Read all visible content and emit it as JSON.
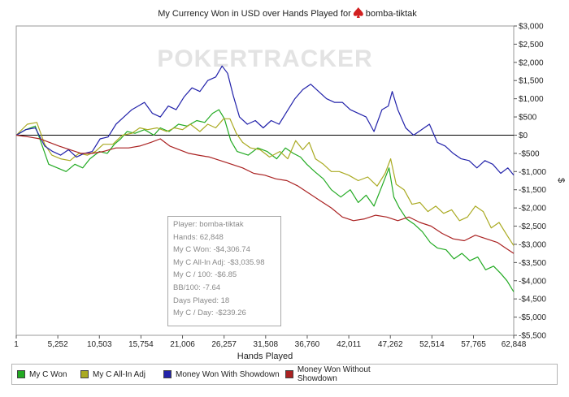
{
  "chart_data": {
    "type": "line",
    "title": "My Currency Won in USD over Hands Played for",
    "player_name": "bomba-tiktak",
    "watermark": "POKERTRACKER",
    "xlabel": "Hands Played",
    "ylabel": "$",
    "xlim": [
      1,
      62848
    ],
    "ylim": [
      -5500,
      3000
    ],
    "x_ticks": [
      1,
      5252,
      10503,
      15754,
      21006,
      26257,
      31508,
      36760,
      42011,
      47262,
      52514,
      57765,
      62848
    ],
    "x_tick_labels": [
      "1",
      "5,252",
      "10,503",
      "15,754",
      "21,006",
      "26,257",
      "31,508",
      "36,760",
      "42,011",
      "47,262",
      "52,514",
      "57,765",
      "62,848"
    ],
    "y_ticks": [
      3000,
      2500,
      2000,
      1500,
      1000,
      500,
      0,
      -500,
      -1000,
      -1500,
      -2000,
      -2500,
      -3000,
      -3500,
      -4000,
      -4500,
      -5000,
      -5500
    ],
    "y_tick_labels": [
      "$3,000",
      "$2,500",
      "$2,000",
      "$1,500",
      "$1,000",
      "$500",
      "$0",
      "-$500",
      "-$1,000",
      "-$1,500",
      "-$2,000",
      "-$2,500",
      "-$3,000",
      "-$3,500",
      "-$4,000",
      "-$4,500",
      "-$5,000",
      "-$5,500"
    ],
    "grid": false,
    "series": [
      {
        "name": "My C Won",
        "color": "#22aa22",
        "x": [
          1,
          1200,
          2400,
          3300,
          4100,
          5200,
          6300,
          7400,
          8400,
          9300,
          10500,
          11500,
          12400,
          13200,
          14000,
          15000,
          16200,
          17400,
          18200,
          19300,
          20500,
          21600,
          22800,
          23800,
          24800,
          25600,
          26300,
          27100,
          27900,
          29300,
          30500,
          31700,
          32900,
          34000,
          35000,
          35900,
          36700,
          37700,
          38800,
          39800,
          41000,
          42200,
          43200,
          44200,
          45200,
          46200,
          47100,
          47700,
          48400,
          49300,
          50300,
          51300,
          52300,
          53200,
          54300,
          55300,
          56300,
          57300,
          58300,
          59300,
          60300,
          61200,
          62000,
          62848
        ],
        "values": [
          0,
          150,
          250,
          -300,
          -800,
          -900,
          -1000,
          -800,
          -900,
          -650,
          -450,
          -500,
          -250,
          -100,
          100,
          50,
          150,
          0,
          200,
          100,
          300,
          250,
          400,
          350,
          600,
          700,
          450,
          -150,
          -450,
          -550,
          -350,
          -450,
          -650,
          -350,
          -500,
          -600,
          -800,
          -1000,
          -1200,
          -1500,
          -1700,
          -1500,
          -1850,
          -1650,
          -1950,
          -1400,
          -900,
          -1700,
          -2000,
          -2300,
          -2450,
          -2650,
          -2950,
          -3100,
          -3150,
          -3400,
          -3250,
          -3450,
          -3350,
          -3700,
          -3600,
          -3800,
          -4000,
          -4306.74
        ]
      },
      {
        "name": "My C All-In Adj",
        "color": "#aaaa22",
        "x": [
          1,
          1400,
          2600,
          3600,
          4500,
          5600,
          6800,
          7900,
          9000,
          10000,
          11000,
          12200,
          13400,
          14600,
          15600,
          16600,
          17800,
          19000,
          20000,
          21000,
          22000,
          23200,
          24200,
          25200,
          26200,
          27000,
          27800,
          28600,
          29600,
          30800,
          32000,
          33300,
          34300,
          35300,
          36200,
          37000,
          37800,
          38800,
          39800,
          40800,
          42000,
          43200,
          44400,
          45600,
          46600,
          47300,
          48000,
          49000,
          50000,
          51000,
          52000,
          53000,
          54000,
          55000,
          56000,
          57000,
          58000,
          59000,
          60000,
          61000,
          62000,
          62848
        ],
        "values": [
          0,
          300,
          350,
          -250,
          -550,
          -650,
          -700,
          -500,
          -550,
          -450,
          -250,
          -250,
          0,
          50,
          200,
          150,
          200,
          100,
          200,
          150,
          300,
          100,
          300,
          200,
          450,
          450,
          50,
          -200,
          -350,
          -400,
          -600,
          -450,
          -650,
          -150,
          -400,
          -200,
          -650,
          -800,
          -1000,
          -1000,
          -1100,
          -1250,
          -1150,
          -1400,
          -1050,
          -650,
          -1350,
          -1500,
          -1900,
          -1850,
          -2100,
          -1950,
          -2150,
          -2050,
          -2350,
          -2250,
          -1950,
          -2100,
          -2550,
          -2400,
          -2750,
          -3035.98
        ]
      },
      {
        "name": "Money Won With Showdown",
        "color": "#2222aa",
        "x": [
          1,
          1200,
          2400,
          3600,
          4600,
          5600,
          6600,
          7600,
          8600,
          9600,
          10600,
          11600,
          12600,
          13600,
          14600,
          15400,
          16200,
          17200,
          18200,
          19200,
          20200,
          21200,
          22200,
          23200,
          24200,
          25200,
          26000,
          26700,
          27400,
          28200,
          29200,
          30200,
          31200,
          32200,
          33200,
          34200,
          35200,
          36200,
          37200,
          38200,
          39200,
          40200,
          41200,
          42200,
          43200,
          44200,
          45200,
          46200,
          47000,
          47500,
          48200,
          49200,
          50200,
          51200,
          52200,
          53200,
          54200,
          55200,
          56200,
          57200,
          58200,
          59200,
          60200,
          61200,
          62100,
          62848
        ],
        "values": [
          0,
          150,
          200,
          -300,
          -450,
          -550,
          -400,
          -600,
          -500,
          -450,
          -100,
          -50,
          300,
          500,
          700,
          800,
          900,
          600,
          500,
          800,
          700,
          1050,
          1300,
          1200,
          1500,
          1600,
          1900,
          1700,
          1100,
          500,
          300,
          400,
          200,
          400,
          300,
          650,
          1000,
          1250,
          1400,
          1200,
          1000,
          900,
          900,
          700,
          600,
          500,
          100,
          700,
          800,
          1200,
          700,
          200,
          0,
          150,
          300,
          -200,
          -300,
          -500,
          -650,
          -700,
          -900,
          -700,
          -800,
          -1050,
          -900,
          -1100
        ]
      },
      {
        "name": "Money Won Without Showdown",
        "color": "#aa2222",
        "x": [
          1,
          1600,
          3000,
          4200,
          5400,
          6800,
          8200,
          9600,
          11000,
          12600,
          14200,
          15600,
          17000,
          18200,
          19400,
          20600,
          21800,
          23000,
          24400,
          25800,
          27200,
          28600,
          30000,
          31400,
          32800,
          34200,
          35600,
          37000,
          38400,
          39800,
          41200,
          42600,
          44000,
          45400,
          46800,
          48200,
          49600,
          51000,
          52400,
          53800,
          55200,
          56600,
          58000,
          59400,
          60800,
          61800,
          62848
        ],
        "values": [
          0,
          -50,
          -100,
          -200,
          -300,
          -400,
          -500,
          -500,
          -450,
          -350,
          -350,
          -300,
          -200,
          -100,
          -300,
          -400,
          -500,
          -550,
          -600,
          -700,
          -800,
          -900,
          -1050,
          -1100,
          -1200,
          -1250,
          -1400,
          -1600,
          -1800,
          -2000,
          -2250,
          -2350,
          -2300,
          -2200,
          -2250,
          -2350,
          -2250,
          -2400,
          -2500,
          -2700,
          -2850,
          -2900,
          -2750,
          -2850,
          -2950,
          -3100,
          -3250
        ]
      }
    ]
  },
  "info_box": {
    "lines": [
      "Player: bomba-tiktak",
      "Hands: 62,848",
      "My C Won: -$4,306.74",
      "My C All-In Adj: -$3,035.98",
      "My C / 100: -$6.85",
      "BB/100: -7.64",
      "Days Played: 18",
      "My C / Day: -$239.26"
    ]
  },
  "legend": {
    "items": [
      {
        "label": "My C Won",
        "color": "#22aa22"
      },
      {
        "label": "My C All-In Adj",
        "color": "#aaaa22"
      },
      {
        "label": "Money Won With Showdown",
        "color": "#2222aa"
      },
      {
        "label": "Money Won Without Showdown",
        "color": "#aa2222"
      }
    ]
  }
}
